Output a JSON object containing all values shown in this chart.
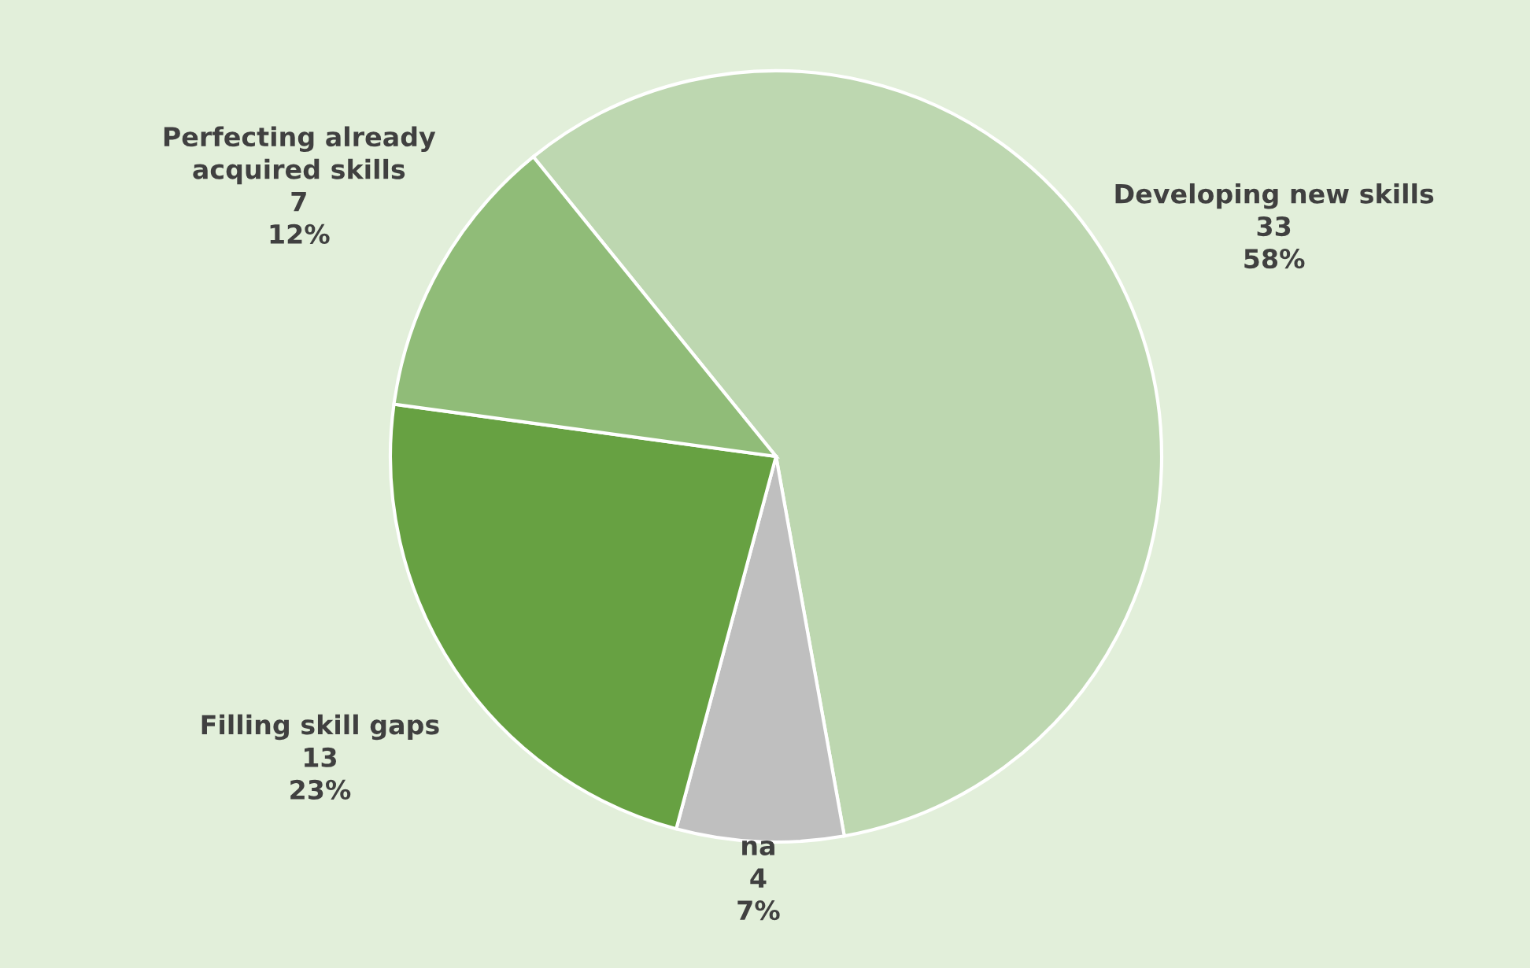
{
  "chart_data": {
    "type": "pie",
    "categories": [
      "Developing new skills",
      "na",
      "Filling skill gaps",
      "Perfecting already acquired skills"
    ],
    "values": [
      58,
      7,
      23,
      12
    ],
    "colors": [
      "#bdd7b0",
      "#bfbfbf",
      "#67a142",
      "#90bc78"
    ],
    "value_labels": [
      "33\n58%",
      "4\n7%",
      "13\n23%",
      "7\n12%"
    ],
    "legend": false
  }
}
